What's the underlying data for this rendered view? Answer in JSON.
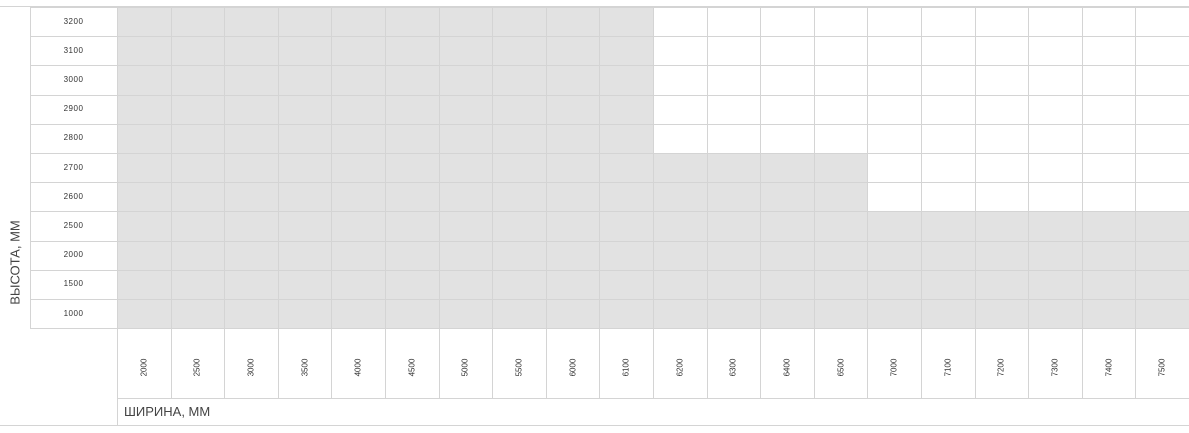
{
  "chart_data": {
    "type": "table",
    "title": "",
    "xlabel": "ШИРИНА, ММ",
    "ylabel": "ВЫСОТА, ММ",
    "x_categories": [
      "2000",
      "2500",
      "3000",
      "3500",
      "4000",
      "4500",
      "5000",
      "5500",
      "6000",
      "6100",
      "6200",
      "6300",
      "6400",
      "6500",
      "7000",
      "7100",
      "7200",
      "7300",
      "7400",
      "7500"
    ],
    "y_categories": [
      "3200",
      "3100",
      "3000",
      "2900",
      "2800",
      "2700",
      "2600",
      "2500",
      "2000",
      "1500",
      "1000"
    ],
    "max_height_per_width": [
      3200,
      3200,
      3200,
      3200,
      3200,
      3200,
      3200,
      3200,
      3200,
      3200,
      2700,
      2700,
      2700,
      2700,
      2500,
      2500,
      2500,
      2500,
      2500,
      2500
    ],
    "colors": {
      "available": "#e2e2e2",
      "unavailable": "#ffffff",
      "grid": "#d4d4d4"
    }
  }
}
